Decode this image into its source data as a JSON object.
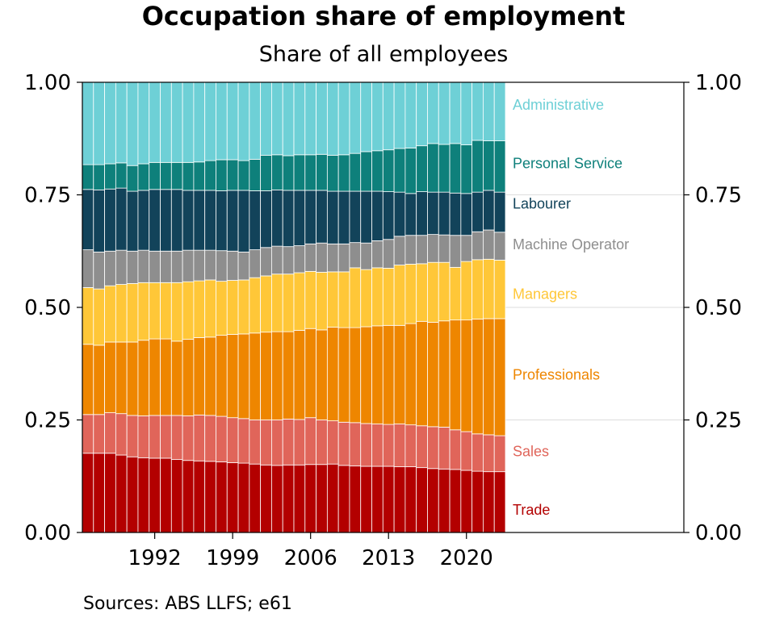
{
  "title": "Occupation share of employment",
  "subtitle": "Share of all employees",
  "source": "Sources: ABS LLFS; e61",
  "chart_data": {
    "type": "bar",
    "stacked": true,
    "title": "Occupation share of employment",
    "subtitle": "Share of all employees",
    "ylim": [
      0,
      1
    ],
    "yticks": [
      "0.00",
      "0.25",
      "0.50",
      "0.75",
      "1.00"
    ],
    "ytick_values": [
      0,
      0.25,
      0.5,
      0.75,
      1
    ],
    "xtick_labels": [
      "1992",
      "1999",
      "2006",
      "2013",
      "2020"
    ],
    "grid": "horizontal",
    "legend": "direct labels at right",
    "x": [
      1986,
      1987,
      1988,
      1989,
      1990,
      1991,
      1992,
      1993,
      1994,
      1995,
      1996,
      1997,
      1998,
      1999,
      2000,
      2001,
      2002,
      2003,
      2004,
      2005,
      2006,
      2007,
      2008,
      2009,
      2010,
      2011,
      2012,
      2013,
      2014,
      2015,
      2016,
      2017,
      2018,
      2019,
      2020,
      2021,
      2022,
      2023
    ],
    "series": [
      {
        "name": "Trade",
        "color": "#b30000",
        "values": [
          0.176,
          0.176,
          0.176,
          0.172,
          0.168,
          0.166,
          0.165,
          0.165,
          0.162,
          0.16,
          0.159,
          0.158,
          0.157,
          0.155,
          0.154,
          0.152,
          0.15,
          0.149,
          0.15,
          0.15,
          0.151,
          0.151,
          0.152,
          0.149,
          0.148,
          0.147,
          0.147,
          0.147,
          0.146,
          0.146,
          0.144,
          0.142,
          0.141,
          0.14,
          0.138,
          0.136,
          0.135,
          0.135
        ]
      },
      {
        "name": "Sales",
        "color": "#e0655a",
        "values": [
          0.086,
          0.086,
          0.09,
          0.092,
          0.092,
          0.093,
          0.095,
          0.095,
          0.098,
          0.099,
          0.102,
          0.102,
          0.101,
          0.1,
          0.099,
          0.098,
          0.1,
          0.101,
          0.102,
          0.101,
          0.104,
          0.099,
          0.096,
          0.096,
          0.096,
          0.095,
          0.094,
          0.093,
          0.095,
          0.093,
          0.093,
          0.093,
          0.093,
          0.088,
          0.086,
          0.083,
          0.082,
          0.08
        ]
      },
      {
        "name": "Professionals",
        "color": "#ee8600",
        "values": [
          0.156,
          0.154,
          0.157,
          0.159,
          0.163,
          0.168,
          0.17,
          0.17,
          0.165,
          0.17,
          0.172,
          0.174,
          0.18,
          0.185,
          0.188,
          0.193,
          0.195,
          0.196,
          0.194,
          0.198,
          0.198,
          0.2,
          0.208,
          0.21,
          0.211,
          0.215,
          0.218,
          0.22,
          0.219,
          0.225,
          0.232,
          0.232,
          0.236,
          0.244,
          0.248,
          0.255,
          0.258,
          0.26
        ]
      },
      {
        "name": "Managers",
        "color": "#ffc738",
        "values": [
          0.126,
          0.125,
          0.125,
          0.128,
          0.13,
          0.128,
          0.125,
          0.125,
          0.13,
          0.128,
          0.126,
          0.127,
          0.12,
          0.12,
          0.12,
          0.123,
          0.125,
          0.128,
          0.128,
          0.128,
          0.127,
          0.128,
          0.123,
          0.124,
          0.133,
          0.127,
          0.129,
          0.127,
          0.134,
          0.132,
          0.128,
          0.133,
          0.13,
          0.117,
          0.13,
          0.132,
          0.132,
          0.13
        ]
      },
      {
        "name": "Machine Operator",
        "color": "#8e8e8e",
        "values": [
          0.084,
          0.082,
          0.077,
          0.076,
          0.072,
          0.072,
          0.07,
          0.07,
          0.07,
          0.07,
          0.068,
          0.066,
          0.068,
          0.065,
          0.062,
          0.062,
          0.063,
          0.062,
          0.061,
          0.06,
          0.061,
          0.065,
          0.062,
          0.062,
          0.056,
          0.059,
          0.06,
          0.064,
          0.064,
          0.064,
          0.063,
          0.062,
          0.061,
          0.071,
          0.058,
          0.062,
          0.065,
          0.062
        ]
      },
      {
        "name": "Labourer",
        "color": "#12435a",
        "values": [
          0.134,
          0.138,
          0.138,
          0.138,
          0.133,
          0.133,
          0.137,
          0.137,
          0.137,
          0.133,
          0.133,
          0.133,
          0.133,
          0.135,
          0.137,
          0.131,
          0.126,
          0.125,
          0.125,
          0.123,
          0.119,
          0.117,
          0.117,
          0.117,
          0.114,
          0.115,
          0.11,
          0.106,
          0.098,
          0.093,
          0.097,
          0.094,
          0.095,
          0.094,
          0.093,
          0.088,
          0.088,
          0.089
        ]
      },
      {
        "name": "Personal Service",
        "color": "#0e807b",
        "values": [
          0.055,
          0.056,
          0.056,
          0.056,
          0.057,
          0.059,
          0.06,
          0.06,
          0.06,
          0.062,
          0.063,
          0.066,
          0.069,
          0.068,
          0.066,
          0.07,
          0.079,
          0.078,
          0.077,
          0.079,
          0.079,
          0.08,
          0.08,
          0.081,
          0.084,
          0.088,
          0.09,
          0.093,
          0.097,
          0.101,
          0.102,
          0.108,
          0.106,
          0.11,
          0.108,
          0.115,
          0.11,
          0.114
        ]
      },
      {
        "name": "Administrative",
        "color": "#6ed0d6",
        "values": [
          0.183,
          0.183,
          0.181,
          0.179,
          0.185,
          0.181,
          0.178,
          0.178,
          0.178,
          0.178,
          0.177,
          0.174,
          0.172,
          0.172,
          0.174,
          0.171,
          0.162,
          0.161,
          0.163,
          0.161,
          0.161,
          0.16,
          0.162,
          0.161,
          0.158,
          0.154,
          0.152,
          0.15,
          0.147,
          0.146,
          0.141,
          0.136,
          0.138,
          0.136,
          0.139,
          0.129,
          0.13,
          0.13
        ]
      }
    ],
    "label_positions": [
      0.05,
      0.18,
      0.35,
      0.53,
      0.64,
      0.73,
      0.82,
      0.95
    ]
  }
}
